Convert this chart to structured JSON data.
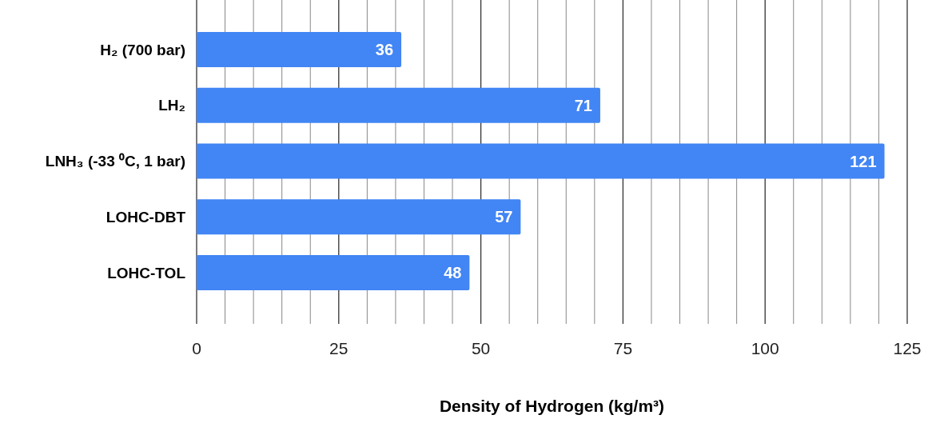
{
  "chart_data": {
    "type": "bar",
    "orientation": "horizontal",
    "xlabel": "Density of Hydrogen (kg/m³)",
    "categories": [
      "H₂ (700 bar)",
      "LH₂",
      "LNH₃ (-33 ⁰C, 1 bar)",
      "LOHC-DBT",
      "LOHC-TOL"
    ],
    "values": [
      36,
      71,
      121,
      57,
      48
    ],
    "color": "#4285f4",
    "data_labels": true,
    "xlim": [
      0,
      125
    ],
    "xticks": [
      0,
      {
        "value": 5,
        "label": null
      },
      {
        "value": 10,
        "label": null
      },
      {
        "value": 15,
        "label": null
      },
      {
        "value": 20,
        "label": null
      },
      25,
      {
        "value": 30,
        "label": null
      },
      {
        "value": 35,
        "label": null
      },
      {
        "value": 40,
        "label": null
      },
      {
        "value": 45,
        "label": null
      },
      50,
      {
        "value": 55,
        "label": null
      },
      {
        "value": 60,
        "label": null
      },
      {
        "value": 65,
        "label": null
      },
      {
        "value": 70,
        "label": null
      },
      75,
      {
        "value": 80,
        "label": null
      },
      {
        "value": 85,
        "label": null
      },
      {
        "value": 90,
        "label": null
      },
      {
        "value": 95,
        "label": null
      },
      100,
      {
        "value": 105,
        "label": null
      },
      {
        "value": 110,
        "label": null
      },
      {
        "value": 115,
        "label": null
      },
      {
        "value": 120,
        "label": null
      },
      125
    ],
    "grid": "x"
  }
}
